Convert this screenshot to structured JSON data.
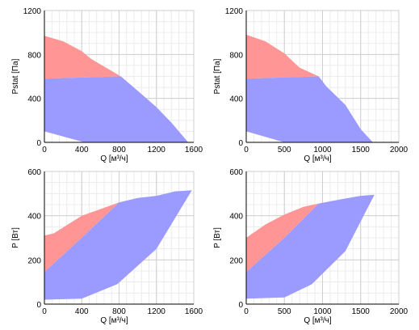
{
  "colors": {
    "red_region": "#ff9595",
    "blue_region": "#9a9aff",
    "grid_major": "#cfcfcf",
    "grid_minor": "#ececec",
    "axis": "#000000"
  },
  "chart_data": [
    {
      "type": "area",
      "xlabel": "Q [м³/ч]",
      "ylabel": "Pstat [Па]",
      "xlim": [
        0,
        1600
      ],
      "ylim": [
        0,
        1200
      ],
      "xticks": [
        0,
        400,
        800,
        1200,
        1600
      ],
      "yticks": [
        0,
        400,
        800,
        1200
      ],
      "regions": [
        {
          "color": "red",
          "points": [
            [
              0,
              970
            ],
            [
              200,
              920
            ],
            [
              400,
              830
            ],
            [
              500,
              760
            ],
            [
              820,
              600
            ],
            [
              0,
              580
            ]
          ]
        },
        {
          "color": "blue",
          "points": [
            [
              0,
              580
            ],
            [
              820,
              600
            ],
            [
              1000,
              470
            ],
            [
              1200,
              320
            ],
            [
              1360,
              180
            ],
            [
              1480,
              60
            ],
            [
              1540,
              0
            ],
            [
              430,
              0
            ],
            [
              0,
              100
            ]
          ]
        }
      ]
    },
    {
      "type": "area",
      "xlabel": "Q [м³/ч]",
      "ylabel": "Pstat [Па]",
      "xlim": [
        0,
        2000
      ],
      "ylim": [
        0,
        1200
      ],
      "xticks": [
        0,
        500,
        1000,
        1500,
        2000
      ],
      "yticks": [
        0,
        400,
        800,
        1200
      ],
      "regions": [
        {
          "color": "red",
          "points": [
            [
              0,
              980
            ],
            [
              250,
              920
            ],
            [
              500,
              810
            ],
            [
              700,
              680
            ],
            [
              950,
              600
            ],
            [
              0,
              580
            ]
          ]
        },
        {
          "color": "blue",
          "points": [
            [
              0,
              580
            ],
            [
              950,
              600
            ],
            [
              1050,
              510
            ],
            [
              1300,
              340
            ],
            [
              1500,
              120
            ],
            [
              1660,
              0
            ],
            [
              500,
              0
            ],
            [
              0,
              100
            ]
          ]
        }
      ]
    },
    {
      "type": "area",
      "xlabel": "Q [м³/ч]",
      "ylabel": "P [Вт]",
      "xlim": [
        0,
        1600
      ],
      "ylim": [
        0,
        600
      ],
      "xticks": [
        0,
        400,
        800,
        1200,
        1600
      ],
      "yticks": [
        0,
        200,
        400,
        600
      ],
      "regions": [
        {
          "color": "red",
          "points": [
            [
              0,
              310
            ],
            [
              100,
              320
            ],
            [
              250,
              360
            ],
            [
              400,
              400
            ],
            [
              600,
              430
            ],
            [
              800,
              460
            ],
            [
              400,
              300
            ],
            [
              0,
              145
            ]
          ]
        },
        {
          "color": "blue",
          "points": [
            [
              0,
              145
            ],
            [
              400,
              300
            ],
            [
              800,
              460
            ],
            [
              1000,
              480
            ],
            [
              1200,
              490
            ],
            [
              1400,
              510
            ],
            [
              1580,
              515
            ],
            [
              1200,
              250
            ],
            [
              780,
              90
            ],
            [
              400,
              25
            ],
            [
              0,
              20
            ]
          ]
        }
      ]
    },
    {
      "type": "area",
      "xlabel": "Q [м³/ч]",
      "ylabel": "P [Вт]",
      "xlim": [
        0,
        2000
      ],
      "ylim": [
        0,
        600
      ],
      "xticks": [
        0,
        500,
        1000,
        1500,
        2000
      ],
      "yticks": [
        0,
        200,
        400,
        600
      ],
      "regions": [
        {
          "color": "red",
          "points": [
            [
              0,
              300
            ],
            [
              250,
              360
            ],
            [
              500,
              405
            ],
            [
              750,
              440
            ],
            [
              950,
              455
            ],
            [
              500,
              300
            ],
            [
              0,
              145
            ]
          ]
        },
        {
          "color": "blue",
          "points": [
            [
              0,
              145
            ],
            [
              500,
              300
            ],
            [
              950,
              455
            ],
            [
              1250,
              475
            ],
            [
              1500,
              490
            ],
            [
              1680,
              495
            ],
            [
              1300,
              240
            ],
            [
              860,
              90
            ],
            [
              500,
              30
            ],
            [
              0,
              25
            ]
          ]
        }
      ]
    }
  ]
}
